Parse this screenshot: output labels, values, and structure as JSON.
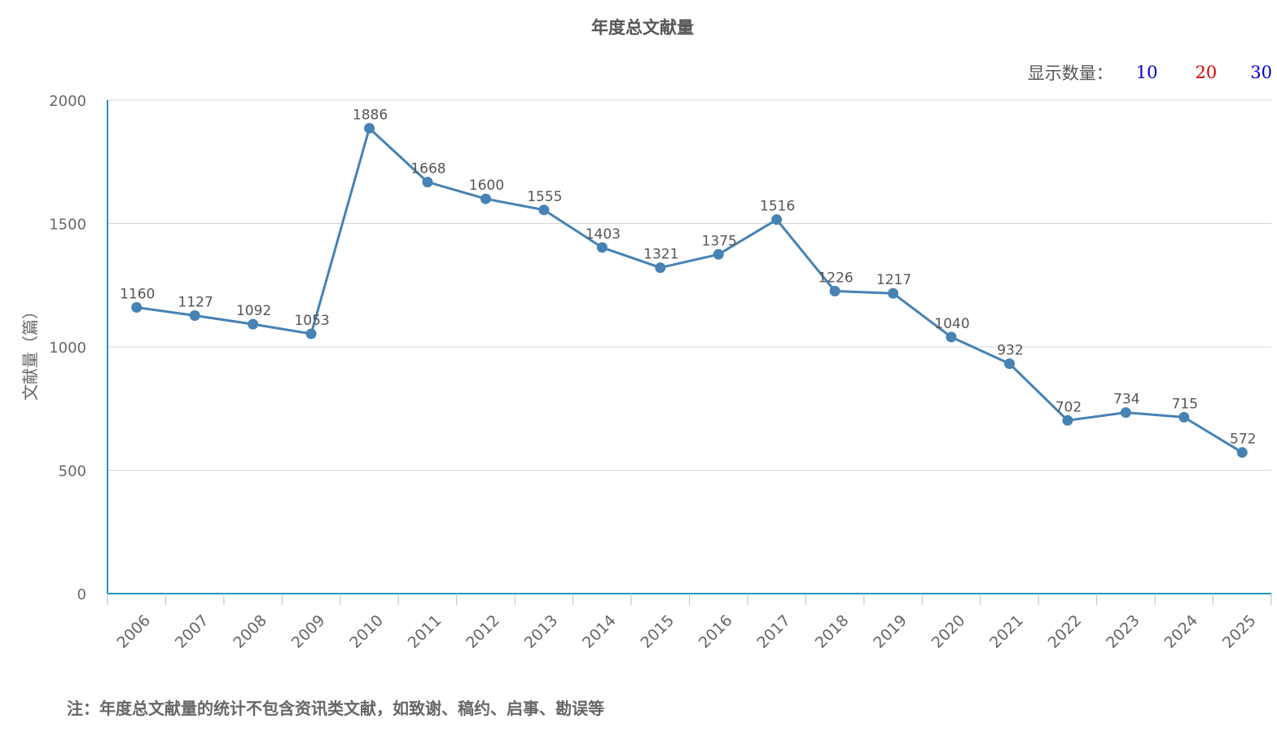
{
  "header": {
    "title": "年度总文献量"
  },
  "controls": {
    "label": "显示数量：",
    "options": [
      "10",
      "20",
      "30"
    ]
  },
  "chart_data": {
    "type": "line",
    "title": "年度总文献量",
    "ylabel": "文献量（篇）",
    "xlabel": "",
    "ylim": [
      0,
      2000
    ],
    "yticks": [
      0,
      500,
      1000,
      1500,
      2000
    ],
    "grid": true,
    "categories": [
      "2006",
      "2007",
      "2008",
      "2009",
      "2010",
      "2011",
      "2012",
      "2013",
      "2014",
      "2015",
      "2016",
      "2017",
      "2018",
      "2019",
      "2020",
      "2021",
      "2022",
      "2023",
      "2024",
      "2025"
    ],
    "values": [
      1160,
      1127,
      1092,
      1053,
      1886,
      1668,
      1600,
      1555,
      1403,
      1321,
      1375,
      1516,
      1226,
      1217,
      1040,
      932,
      702,
      734,
      715,
      572
    ],
    "line_color": "#4682b4",
    "axis_color": "#2196c8"
  },
  "footnote": "注：年度总文献量的统计不包含资讯类文献，如致谢、稿约、启事、勘误等"
}
